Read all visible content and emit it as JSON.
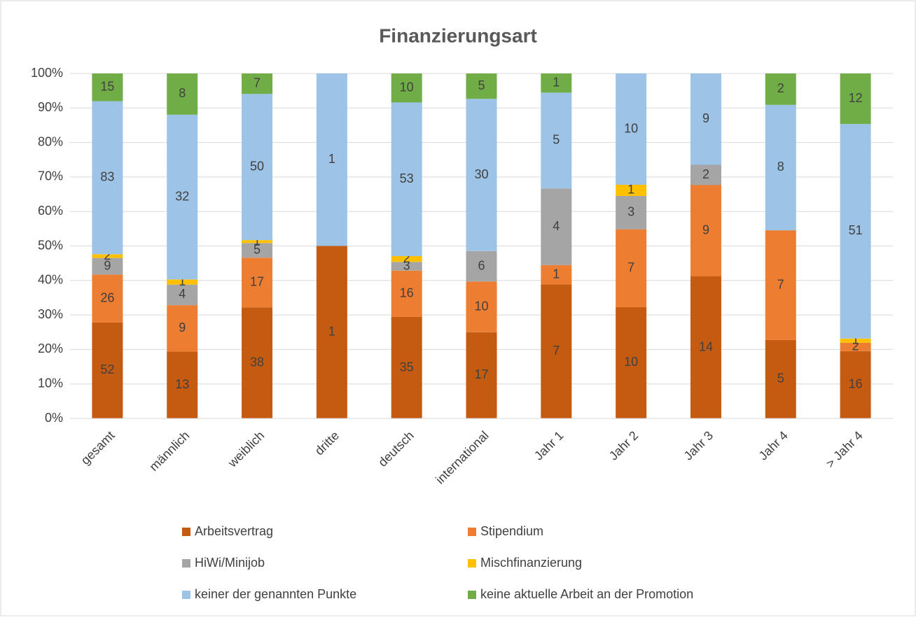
{
  "chart_data": {
    "type": "bar",
    "stacking": "percent",
    "title": "Finanzierungsart",
    "categories": [
      "gesamt",
      "männlich",
      "weiblich",
      "dritte",
      "deutsch",
      "international",
      "Jahr 1",
      "Jahr 2",
      "Jahr 3",
      "Jahr 4",
      "> Jahr 4"
    ],
    "series": [
      {
        "name": "Arbeitsvertrag",
        "color": "#c55a11",
        "values": [
          52,
          13,
          38,
          1,
          35,
          17,
          7,
          10,
          14,
          5,
          16
        ]
      },
      {
        "name": "Stipendium",
        "color": "#ed7d31",
        "values": [
          26,
          9,
          17,
          0,
          16,
          10,
          1,
          7,
          9,
          7,
          2
        ]
      },
      {
        "name": "HiWi/Minijob",
        "color": "#a5a5a5",
        "values": [
          9,
          4,
          5,
          0,
          3,
          6,
          4,
          3,
          2,
          0,
          0
        ]
      },
      {
        "name": "Mischfinanzierung",
        "color": "#ffc000",
        "values": [
          2,
          1,
          1,
          0,
          2,
          0,
          0,
          1,
          0,
          0,
          1
        ]
      },
      {
        "name": "keiner der genannten Punkte",
        "color": "#9dc3e6",
        "values": [
          83,
          32,
          50,
          1,
          53,
          30,
          5,
          10,
          9,
          8,
          51
        ]
      },
      {
        "name": "keine aktuelle Arbeit an der Promotion",
        "color": "#70ad47",
        "values": [
          15,
          8,
          7,
          0,
          10,
          5,
          1,
          0,
          0,
          2,
          12
        ]
      }
    ],
    "ylim": [
      0,
      100
    ],
    "yticks": [
      {
        "value": 0,
        "label": "0%"
      },
      {
        "value": 10,
        "label": "10%"
      },
      {
        "value": 20,
        "label": "20%"
      },
      {
        "value": 30,
        "label": "30%"
      },
      {
        "value": 40,
        "label": "40%"
      },
      {
        "value": 50,
        "label": "50%"
      },
      {
        "value": 60,
        "label": "60%"
      },
      {
        "value": 70,
        "label": "70%"
      },
      {
        "value": 80,
        "label": "80%"
      },
      {
        "value": 90,
        "label": "90%"
      },
      {
        "value": 100,
        "label": "100%"
      }
    ],
    "grid": true,
    "legend": "bottom"
  }
}
